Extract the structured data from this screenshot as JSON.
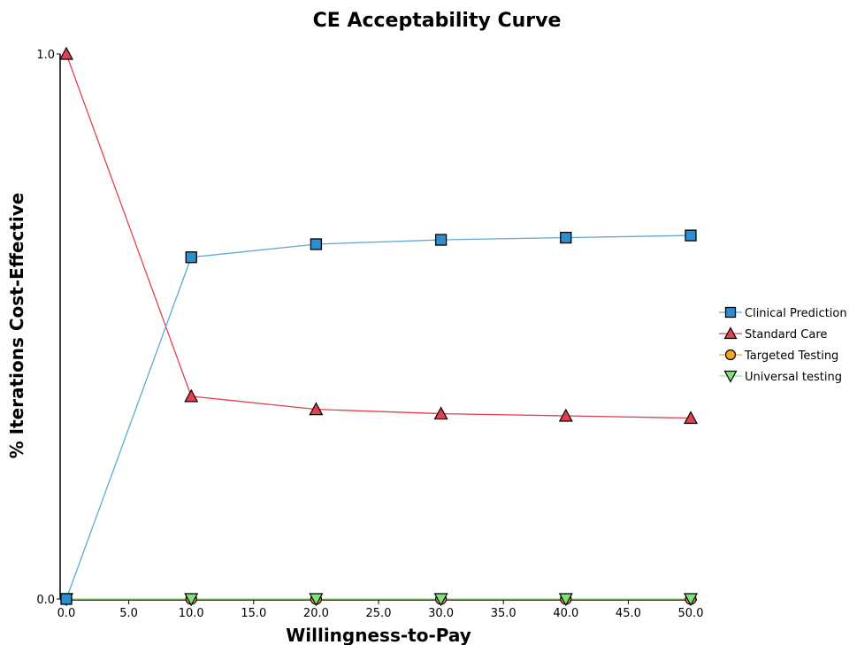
{
  "chart_data": {
    "type": "line",
    "title": "CE Acceptability Curve",
    "xlabel": "Willingness-to-Pay",
    "ylabel": "% Iterations Cost-Effective",
    "x": [
      0.0,
      10.0,
      20.0,
      30.0,
      40.0,
      50.0
    ],
    "xlim": [
      0.0,
      50.0
    ],
    "ylim": [
      0.0,
      1.0
    ],
    "x_ticks": [
      "0.0",
      "5.0",
      "10.0",
      "15.0",
      "20.0",
      "25.0",
      "30.0",
      "35.0",
      "40.0",
      "45.0",
      "50.0"
    ],
    "y_ticks": [
      "0.0",
      "1.0"
    ],
    "grid": false,
    "legend_position": "right",
    "series": [
      {
        "name": "Clinical Prediction",
        "values": [
          0.0,
          0.627,
          0.651,
          0.659,
          0.663,
          0.667
        ],
        "color": "#2e8fd0",
        "line_color": "#5fa8d3",
        "marker": "square"
      },
      {
        "name": "Standard Care",
        "values": [
          1.0,
          0.372,
          0.348,
          0.34,
          0.336,
          0.332
        ],
        "color": "#e34050",
        "line_color": "#e34050",
        "marker": "triangle-up"
      },
      {
        "name": "Targeted Testing",
        "values": [
          0.0,
          0.0,
          0.0,
          0.0,
          0.0,
          0.0
        ],
        "color": "#f5a623",
        "line_color": "#f5a623",
        "marker": "circle"
      },
      {
        "name": "Universal testing",
        "values": [
          0.0,
          0.0,
          0.0,
          0.0,
          0.0,
          0.0
        ],
        "color": "#7fe07f",
        "line_color": "#8fe88f",
        "marker": "triangle-down"
      }
    ]
  }
}
